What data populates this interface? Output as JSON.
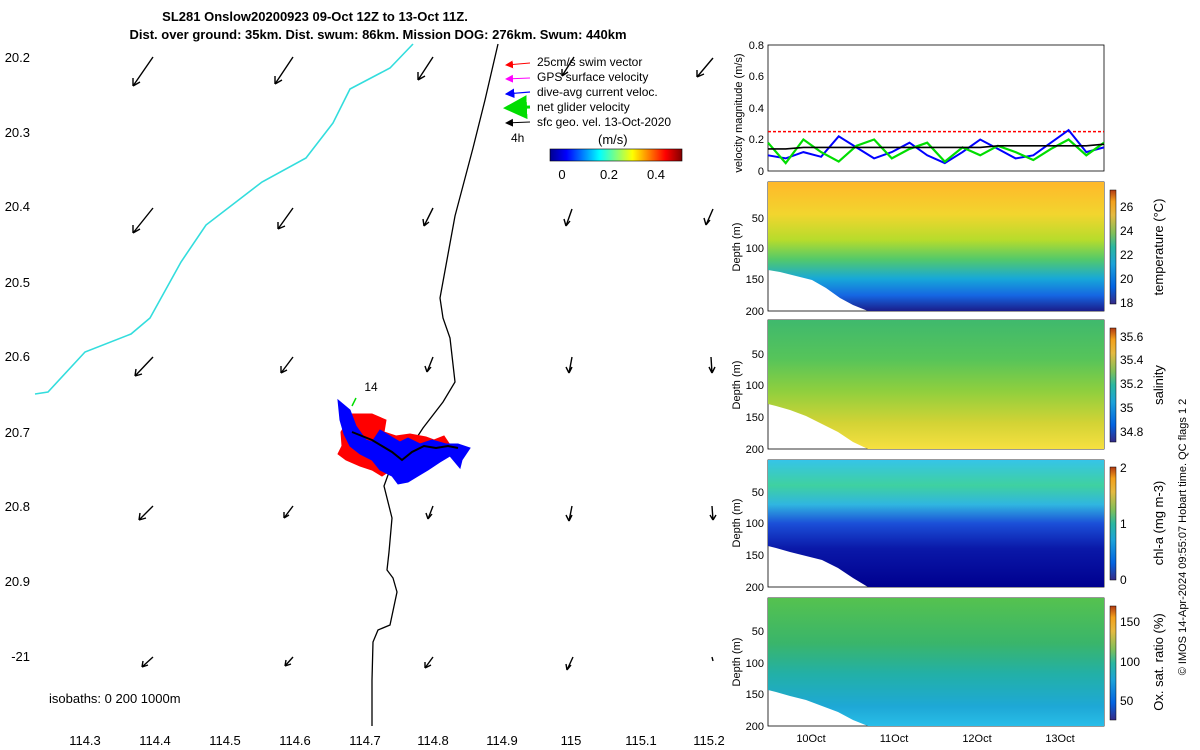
{
  "title": {
    "line1": "SL281 Onslow20200923 09-Oct 12Z to 13-Oct 11Z.",
    "line2": "Dist. over ground: 35km. Dist. swum: 86km. Mission DOG: 276km. Swum: 440km"
  },
  "colors": {
    "swim": "#ff0000",
    "gps": "#ff00ff",
    "dive": "#0000ff",
    "net": "#00dd00",
    "geo": "#000000",
    "coast": "#33dddd"
  },
  "chart_data": [
    {
      "type": "map",
      "name": "track map",
      "x_ticks": [
        "114.3",
        "114.4",
        "114.5",
        "114.6",
        "114.7",
        "114.8",
        "114.9",
        "115",
        "115.1",
        "115.2"
      ],
      "y_ticks": [
        "20.2",
        "20.3",
        "20.4",
        "20.5",
        "20.6",
        "20.7",
        "20.8",
        "20.9",
        "-21"
      ],
      "xlim": [
        114.23,
        115.21
      ],
      "ylim": [
        20.18,
        20.99
      ],
      "legend": {
        "items": [
          "25cm/s swim vector",
          "GPS surface velocity",
          "dive-avg current veloc.",
          "net glider velocity",
          "sfc geo. vel. 13-Oct-2020"
        ],
        "time_label": "4h",
        "colorbar_title": "(m/s)",
        "colorbar_ticks": [
          "0",
          "0.2",
          "0.4"
        ]
      },
      "annotations": {
        "day_marker": "14",
        "isobaths": "isobaths: 0   200   1000m"
      }
    },
    {
      "type": "line",
      "name": "velocity magnitude",
      "ylabel": "velocity magnitude (m/s)",
      "yticks": [
        "0",
        "0.2",
        "0.4",
        "0.6",
        "0.8"
      ],
      "ylim": [
        0,
        0.8
      ],
      "series": [
        {
          "name": "swim",
          "values": [
            0.25,
            0.25,
            0.25,
            0.25,
            0.25,
            0.25,
            0.25,
            0.25,
            0.25,
            0.25,
            0.25,
            0.25,
            0.25,
            0.25,
            0.25,
            0.25,
            0.25,
            0.25,
            0.25,
            0.25
          ]
        },
        {
          "name": "dive-avg",
          "values": [
            0.1,
            0.08,
            0.12,
            0.09,
            0.22,
            0.15,
            0.08,
            0.12,
            0.18,
            0.1,
            0.05,
            0.12,
            0.2,
            0.14,
            0.08,
            0.1,
            0.18,
            0.26,
            0.12,
            0.15
          ]
        },
        {
          "name": "net",
          "values": [
            0.18,
            0.05,
            0.2,
            0.12,
            0.06,
            0.16,
            0.2,
            0.08,
            0.14,
            0.18,
            0.06,
            0.15,
            0.1,
            0.16,
            0.12,
            0.07,
            0.14,
            0.2,
            0.1,
            0.18
          ]
        },
        {
          "name": "geo",
          "values": [
            0.14,
            0.14,
            0.15,
            0.15,
            0.15,
            0.15,
            0.15,
            0.15,
            0.15,
            0.15,
            0.15,
            0.15,
            0.15,
            0.16,
            0.16,
            0.16,
            0.16,
            0.16,
            0.16,
            0.17
          ]
        }
      ]
    },
    {
      "type": "heatmap",
      "name": "temperature",
      "ylabel": "Depth (m)",
      "yticks": [
        "50",
        "100",
        "150",
        "200"
      ],
      "cbar_label": "temperature (°C)",
      "cbar_ticks": [
        "18",
        "20",
        "22",
        "24",
        "26"
      ]
    },
    {
      "type": "heatmap",
      "name": "salinity",
      "ylabel": "Depth (m)",
      "yticks": [
        "50",
        "100",
        "150",
        "200"
      ],
      "cbar_label": "salinity",
      "cbar_ticks": [
        "34.8",
        "35",
        "35.2",
        "35.4",
        "35.6"
      ]
    },
    {
      "type": "heatmap",
      "name": "chl-a",
      "ylabel": "Depth (m)",
      "yticks": [
        "50",
        "100",
        "150",
        "200"
      ],
      "cbar_label": "chl-a (mg m-3)",
      "cbar_ticks": [
        "0",
        "1",
        "2"
      ]
    },
    {
      "type": "heatmap",
      "name": "oxygen",
      "ylabel": "Depth (m)",
      "yticks": [
        "50",
        "100",
        "150",
        "200"
      ],
      "cbar_label": "Ox. sat. ratio (%)",
      "cbar_ticks": [
        "50",
        "100",
        "150"
      ],
      "xticks": [
        "10Oct",
        "11Oct",
        "12Oct",
        "13Oct"
      ]
    }
  ],
  "footer": "© IMOS 14-Apr-2024 09:55:07 Hobart time. QC flags 1  2"
}
